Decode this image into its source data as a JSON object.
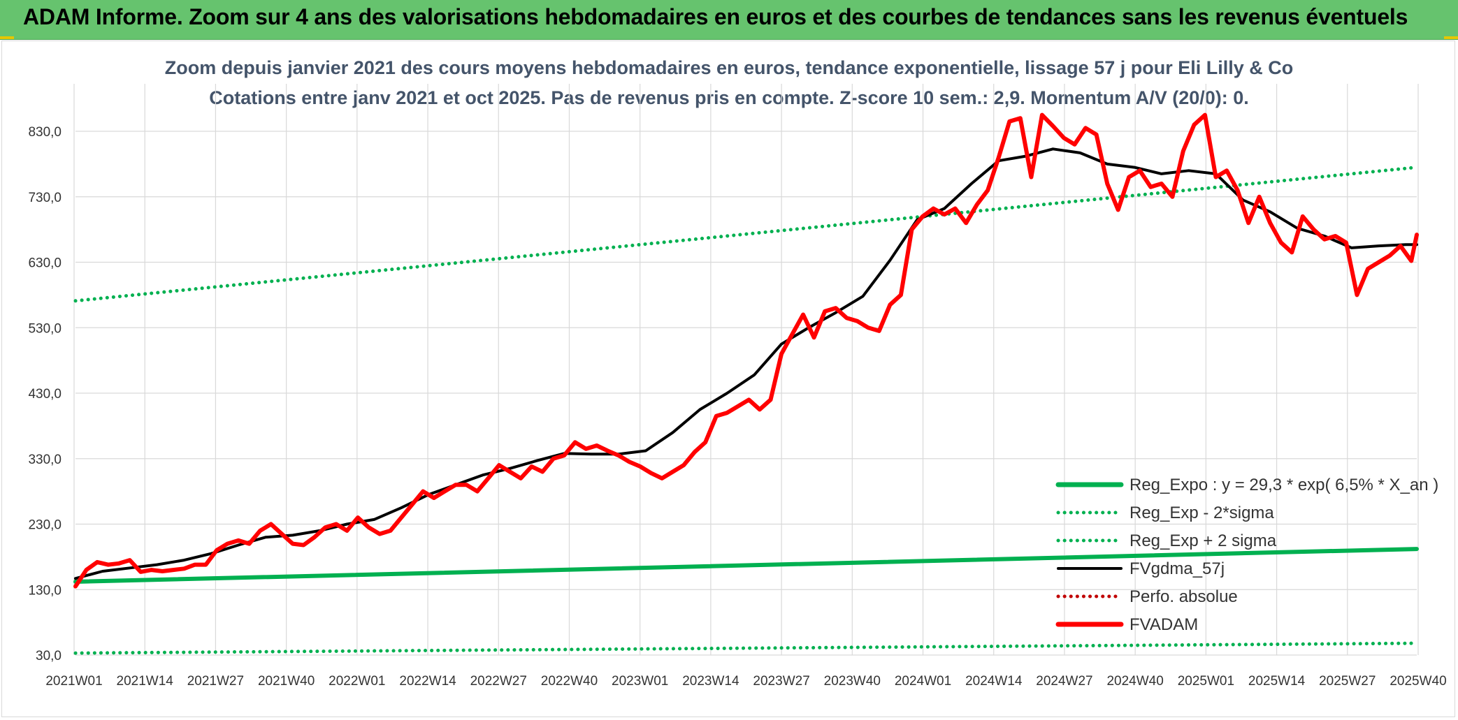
{
  "banner": {
    "title": "ADAM Informe. Zoom sur 4 ans des valorisations hebdomadaires en euros et des courbes de tendances sans les revenus éventuels"
  },
  "colors": {
    "banner": "#66c36e",
    "regression": "#00b050",
    "smoothing": "#000000",
    "price": "#ff0000",
    "perf": "#c00000",
    "grid": "#d9d9d9",
    "title": "#44546a"
  },
  "chart_data": {
    "type": "line",
    "title": "Zoom depuis janvier 2021 des cours moyens hebdomadaires en euros, tendance exponentielle, lissage 57 j pour Eli Lilly & Co",
    "subtitle": "Cotations entre janv 2021 et oct 2025. Pas de revenus pris en compte. Z-score 10 sem.: 2,9. Momentum A/V (20/0): 0.",
    "xlabel": "",
    "ylabel": "",
    "ylim": [
      30,
      900
    ],
    "y_ticks": [
      "830,0",
      "730,0",
      "630,0",
      "530,0",
      "430,0",
      "330,0",
      "230,0",
      "130,0",
      "30,0"
    ],
    "y_tick_values": [
      830,
      730,
      630,
      530,
      430,
      330,
      230,
      130,
      30
    ],
    "x_ticks": [
      "2021W01",
      "2021W14",
      "2021W27",
      "2021W40",
      "2022W01",
      "2022W14",
      "2022W27",
      "2022W40",
      "2023W01",
      "2023W14",
      "2023W27",
      "2023W40",
      "2024W01",
      "2024W14",
      "2024W27",
      "2024W40",
      "2025W01",
      "2025W14",
      "2025W27",
      "2025W40"
    ],
    "x_range_weeks": [
      0,
      247
    ],
    "legend": [
      {
        "label": "Reg_Expo : y = 29,3 * exp( 6,5% *  X_an )",
        "style": "solid-thick",
        "color": "#00b050"
      },
      {
        "label": "Reg_Exp - 2*sigma",
        "style": "dotted",
        "color": "#00b050"
      },
      {
        "label": "Reg_Exp + 2 sigma",
        "style": "dotted",
        "color": "#00b050"
      },
      {
        "label": "FVgdma_57j",
        "style": "solid",
        "color": "#000000"
      },
      {
        "label": "Perfo. absolue",
        "style": "dotted",
        "color": "#c00000"
      },
      {
        "label": "FVADAM",
        "style": "solid-thick",
        "color": "#ff0000"
      }
    ],
    "series": [
      {
        "name": "Reg_Expo",
        "color": "#00b050",
        "style": "solid",
        "x": [
          0,
          247
        ],
        "values": [
          142,
          192
        ]
      },
      {
        "name": "Reg_Exp - 2*sigma",
        "color": "#00b050",
        "style": "dotted",
        "x": [
          0,
          247
        ],
        "values": [
          33,
          48
        ]
      },
      {
        "name": "Reg_Exp + 2 sigma",
        "color": "#00b050",
        "style": "dotted",
        "x": [
          0,
          247
        ],
        "values": [
          571,
          775
        ]
      },
      {
        "name": "FVgdma_57j",
        "color": "#000000",
        "style": "solid",
        "x": [
          0,
          5,
          10,
          15,
          20,
          25,
          30,
          35,
          40,
          45,
          50,
          55,
          60,
          65,
          70,
          75,
          80,
          85,
          90,
          95,
          100,
          105,
          110,
          115,
          120,
          125,
          130,
          135,
          140,
          145,
          150,
          155,
          160,
          165,
          170,
          175,
          180,
          185,
          190,
          195,
          200,
          205,
          210,
          215,
          220,
          225,
          230,
          235,
          240,
          245,
          247
        ],
        "values": [
          147,
          158,
          163,
          168,
          175,
          185,
          198,
          210,
          213,
          220,
          230,
          237,
          255,
          275,
          290,
          305,
          315,
          327,
          338,
          337,
          337,
          342,
          370,
          405,
          430,
          458,
          505,
          530,
          553,
          578,
          633,
          695,
          712,
          750,
          785,
          792,
          803,
          797,
          780,
          775,
          765,
          770,
          765,
          725,
          707,
          682,
          670,
          652,
          655,
          657,
          657
        ]
      },
      {
        "name": "FVADAM",
        "color": "#ff0000",
        "style": "solid",
        "x": [
          0,
          2,
          4,
          6,
          8,
          10,
          12,
          14,
          16,
          18,
          20,
          22,
          24,
          26,
          28,
          30,
          32,
          34,
          36,
          38,
          40,
          42,
          44,
          46,
          48,
          50,
          52,
          54,
          56,
          58,
          60,
          62,
          64,
          66,
          68,
          70,
          72,
          74,
          76,
          78,
          80,
          82,
          84,
          86,
          88,
          90,
          92,
          94,
          96,
          98,
          100,
          102,
          104,
          106,
          108,
          110,
          112,
          114,
          116,
          118,
          120,
          122,
          124,
          126,
          128,
          130,
          132,
          134,
          136,
          138,
          140,
          142,
          144,
          146,
          148,
          150,
          152,
          154,
          156,
          158,
          160,
          162,
          164,
          166,
          168,
          170,
          172,
          174,
          176,
          178,
          180,
          182,
          184,
          186,
          188,
          190,
          192,
          194,
          196,
          198,
          200,
          202,
          204,
          206,
          208,
          210,
          212,
          214,
          216,
          218,
          220,
          222,
          224,
          226,
          228,
          230,
          232,
          234,
          236,
          238,
          240,
          242,
          244,
          246,
          247
        ],
        "values": [
          135,
          160,
          172,
          168,
          170,
          175,
          157,
          160,
          158,
          160,
          162,
          168,
          168,
          190,
          200,
          205,
          200,
          220,
          230,
          215,
          200,
          198,
          210,
          225,
          230,
          220,
          240,
          225,
          215,
          220,
          240,
          260,
          280,
          270,
          280,
          290,
          290,
          280,
          300,
          320,
          310,
          300,
          318,
          310,
          330,
          335,
          355,
          345,
          350,
          342,
          335,
          325,
          318,
          308,
          300,
          310,
          320,
          340,
          355,
          395,
          400,
          410,
          420,
          405,
          420,
          490,
          520,
          550,
          515,
          555,
          560,
          545,
          540,
          530,
          525,
          565,
          580,
          680,
          700,
          712,
          703,
          712,
          690,
          718,
          740,
          790,
          845,
          850,
          760,
          855,
          838,
          820,
          810,
          835,
          825,
          750,
          710,
          760,
          770,
          745,
          750,
          730,
          800,
          840,
          855,
          760,
          770,
          740,
          690,
          730,
          690,
          660,
          645,
          700,
          680,
          665,
          670,
          660,
          580,
          620,
          630,
          640,
          655,
          632,
          672
        ]
      }
    ]
  }
}
